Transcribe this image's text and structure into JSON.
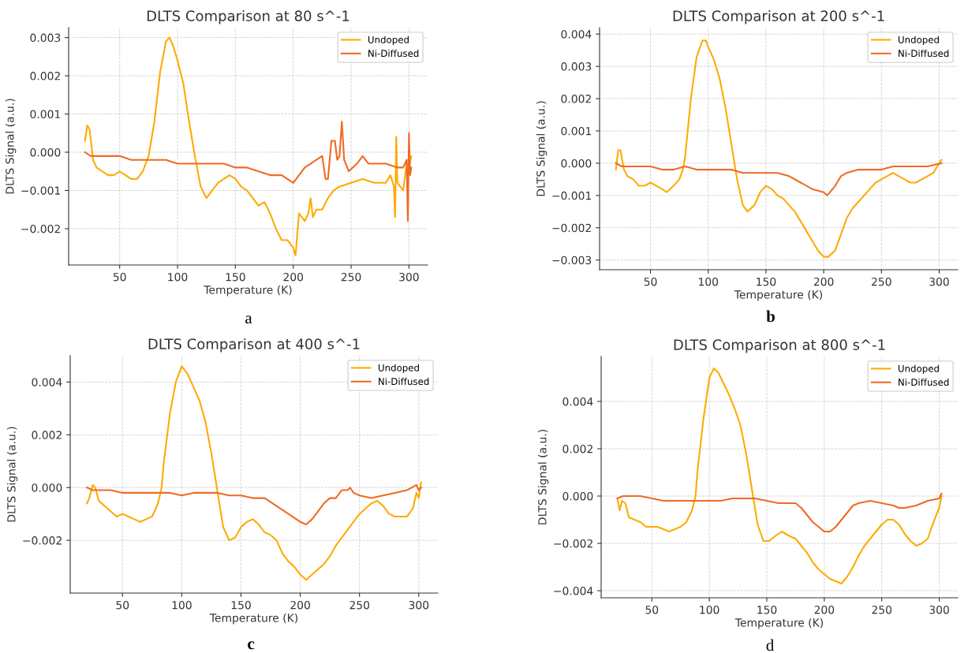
{
  "chart_data": [
    {
      "type": "line",
      "title": "DLTS Comparison at 80 s^-1",
      "xlabel": "Temperature (K)",
      "ylabel": "DLTS Signal (a.u.)",
      "annotations": [
        "a"
      ],
      "xlim": [
        5.9,
        316.1
      ],
      "ylim": [
        -0.00295,
        0.00326
      ],
      "xticks": [
        50,
        100,
        150,
        200,
        250,
        300
      ],
      "yticks": [
        {
          "value": -0.002,
          "label": "−0.002"
        },
        {
          "value": -0.001,
          "label": "−0.001"
        },
        {
          "value": 0,
          "label": "0.000"
        },
        {
          "value": 0.001,
          "label": "0.001"
        },
        {
          "value": 0.002,
          "label": "0.002"
        },
        {
          "value": 0.003,
          "label": "0.003"
        }
      ],
      "grid": true,
      "legend": "top right",
      "marker": "none",
      "line_style": "solid",
      "series": [
        {
          "name": "Undoped",
          "color": "#ffaa00",
          "x": [
            20,
            22,
            24,
            27,
            30,
            35,
            40,
            45,
            50,
            55,
            60,
            65,
            70,
            75,
            80,
            85,
            90,
            93,
            96,
            100,
            105,
            110,
            115,
            120,
            125,
            130,
            135,
            140,
            145,
            150,
            155,
            160,
            165,
            170,
            175,
            180,
            185,
            190,
            195,
            200,
            202,
            205,
            210,
            213,
            215,
            217,
            220,
            225,
            230,
            235,
            240,
            250,
            260,
            270,
            280,
            284,
            287,
            288,
            289,
            290,
            295,
            298,
            300,
            302
          ],
          "values": [
            0.0003,
            0.0007,
            0.0006,
            -0.0002,
            -0.0004,
            -0.0005,
            -0.0006,
            -0.0006,
            -0.0005,
            -0.0006,
            -0.0007,
            -0.0007,
            -0.0005,
            -0.0001,
            0.0008,
            0.0021,
            0.0029,
            0.003,
            0.0028,
            0.0024,
            0.0018,
            0.0008,
            -0.0001,
            -0.0009,
            -0.0012,
            -0.001,
            -0.0008,
            -0.0007,
            -0.0006,
            -0.0007,
            -0.0009,
            -0.001,
            -0.0012,
            -0.0014,
            -0.0013,
            -0.0016,
            -0.002,
            -0.0023,
            -0.0023,
            -0.0025,
            -0.0027,
            -0.0016,
            -0.0018,
            -0.0016,
            -0.0012,
            -0.0017,
            -0.0015,
            -0.0015,
            -0.0012,
            -0.001,
            -0.0009,
            -0.0008,
            -0.0007,
            -0.0008,
            -0.0008,
            -0.0006,
            -0.0009,
            -0.0017,
            0.0004,
            -0.0008,
            -0.001,
            -0.0003,
            -0.0004,
            -0.0001
          ]
        },
        {
          "name": "Ni-Diffused",
          "color": "#f06a24",
          "x": [
            20,
            25,
            30,
            40,
            50,
            60,
            70,
            80,
            90,
            100,
            110,
            120,
            130,
            140,
            150,
            160,
            170,
            180,
            190,
            200,
            205,
            210,
            215,
            220,
            225,
            228,
            230,
            233,
            236,
            238,
            240,
            242,
            244,
            248,
            255,
            260,
            265,
            270,
            280,
            290,
            295,
            298,
            299,
            300,
            301,
            302
          ],
          "values": [
            0.0,
            -0.0001,
            -0.0001,
            -0.0001,
            -0.0001,
            -0.0002,
            -0.0002,
            -0.0002,
            -0.0002,
            -0.0003,
            -0.0003,
            -0.0003,
            -0.0003,
            -0.0003,
            -0.0004,
            -0.0004,
            -0.0005,
            -0.0006,
            -0.0006,
            -0.0008,
            -0.0006,
            -0.0004,
            -0.0003,
            -0.0002,
            -0.0001,
            -0.0007,
            -0.0007,
            0.0003,
            0.0003,
            -0.0002,
            -0.0001,
            0.0008,
            -0.0002,
            -0.0005,
            -0.0003,
            -0.0001,
            -0.0003,
            -0.0003,
            -0.0003,
            -0.0004,
            -0.0004,
            -0.0002,
            -0.0018,
            0.0005,
            -0.0006,
            -0.0004
          ]
        }
      ]
    },
    {
      "type": "line",
      "title": "DLTS Comparison at 200 s^-1",
      "xlabel": "Temperature (K)",
      "ylabel": "DLTS Signal (a.u.)",
      "annotations": [
        "b"
      ],
      "xlim": [
        5.9,
        316.1
      ],
      "ylim": [
        -0.0033,
        0.0042
      ],
      "xticks": [
        50,
        100,
        150,
        200,
        250,
        300
      ],
      "yticks": [
        {
          "value": -0.003,
          "label": "−0.003"
        },
        {
          "value": -0.002,
          "label": "−0.002"
        },
        {
          "value": -0.001,
          "label": "−0.001"
        },
        {
          "value": 0,
          "label": "0.000"
        },
        {
          "value": 0.001,
          "label": "0.001"
        },
        {
          "value": 0.002,
          "label": "0.002"
        },
        {
          "value": 0.003,
          "label": "0.003"
        },
        {
          "value": 0.004,
          "label": "0.004"
        }
      ],
      "grid": true,
      "legend": "top right",
      "marker": "none",
      "line_style": "solid",
      "series": [
        {
          "name": "Undoped",
          "color": "#ffaa00",
          "x": [
            20,
            22,
            24,
            27,
            30,
            35,
            40,
            45,
            50,
            55,
            60,
            64,
            70,
            75,
            78,
            80,
            85,
            90,
            95,
            98,
            100,
            105,
            110,
            115,
            120,
            125,
            130,
            134,
            140,
            145,
            150,
            155,
            160,
            165,
            170,
            175,
            180,
            185,
            190,
            195,
            200,
            204,
            210,
            215,
            220,
            225,
            230,
            235,
            240,
            245,
            250,
            255,
            260,
            265,
            270,
            275,
            280,
            285,
            290,
            295,
            300,
            302
          ],
          "values": [
            -0.0002,
            0.0004,
            0.0004,
            -0.0002,
            -0.0004,
            -0.0005,
            -0.0007,
            -0.0007,
            -0.0006,
            -0.0007,
            -0.0008,
            -0.0009,
            -0.0007,
            -0.0005,
            -0.0002,
            0.0002,
            0.002,
            0.0033,
            0.0038,
            0.0038,
            0.0036,
            0.0032,
            0.0026,
            0.0017,
            0.0006,
            -0.0005,
            -0.0013,
            -0.0015,
            -0.0013,
            -0.0009,
            -0.0007,
            -0.0008,
            -0.001,
            -0.0011,
            -0.0013,
            -0.0015,
            -0.0018,
            -0.0021,
            -0.0024,
            -0.0027,
            -0.0029,
            -0.0029,
            -0.0027,
            -0.0022,
            -0.0017,
            -0.0014,
            -0.0012,
            -0.001,
            -0.0008,
            -0.0006,
            -0.0005,
            -0.0004,
            -0.0003,
            -0.0004,
            -0.0005,
            -0.0006,
            -0.0006,
            -0.0005,
            -0.0004,
            -0.0003,
            0.0,
            0.0001
          ]
        },
        {
          "name": "Ni-Diffused",
          "color": "#f06a24",
          "x": [
            20,
            25,
            30,
            40,
            50,
            60,
            70,
            80,
            90,
            100,
            110,
            120,
            130,
            140,
            150,
            160,
            170,
            180,
            190,
            200,
            203,
            210,
            215,
            220,
            230,
            240,
            250,
            260,
            270,
            280,
            290,
            302
          ],
          "values": [
            0.0,
            -0.0001,
            -0.0001,
            -0.0001,
            -0.0001,
            -0.0002,
            -0.0002,
            -0.0001,
            -0.0002,
            -0.0002,
            -0.0002,
            -0.0002,
            -0.0003,
            -0.0003,
            -0.0003,
            -0.0003,
            -0.0004,
            -0.0006,
            -0.0008,
            -0.0009,
            -0.001,
            -0.0007,
            -0.0004,
            -0.0003,
            -0.0002,
            -0.0002,
            -0.0002,
            -0.0001,
            -0.0001,
            -0.0001,
            -0.0001,
            0.0
          ]
        }
      ]
    },
    {
      "type": "line",
      "title": "DLTS Comparison at 400 s^-1",
      "xlabel": "Temperature (K)",
      "ylabel": "DLTS Signal (a.u.)",
      "annotations": [
        "c"
      ],
      "xlim": [
        5.9,
        316.1
      ],
      "ylim": [
        -0.004,
        0.005
      ],
      "xticks": [
        50,
        100,
        150,
        200,
        250,
        300
      ],
      "yticks": [
        {
          "value": -0.002,
          "label": "−0.002"
        },
        {
          "value": 0,
          "label": "0.000"
        },
        {
          "value": 0.002,
          "label": "0.002"
        },
        {
          "value": 0.004,
          "label": "0.004"
        }
      ],
      "grid": true,
      "legend": "top right",
      "marker": "none",
      "line_style": "solid",
      "series": [
        {
          "name": "Undoped",
          "color": "#ffaa00",
          "x": [
            20,
            22,
            25,
            27,
            30,
            35,
            40,
            45,
            50,
            55,
            60,
            65,
            70,
            75,
            80,
            83,
            85,
            90,
            95,
            100,
            105,
            110,
            115,
            120,
            125,
            130,
            135,
            140,
            145,
            150,
            155,
            160,
            165,
            170,
            175,
            180,
            185,
            190,
            195,
            200,
            205,
            210,
            215,
            220,
            225,
            230,
            235,
            240,
            245,
            250,
            255,
            260,
            265,
            270,
            275,
            280,
            285,
            290,
            295,
            298,
            300,
            302
          ],
          "values": [
            -0.0006,
            -0.0004,
            0.0001,
            0.0,
            -0.0005,
            -0.0007,
            -0.0009,
            -0.0011,
            -0.001,
            -0.0011,
            -0.0012,
            -0.0013,
            -0.0012,
            -0.0011,
            -0.0006,
            0.0,
            0.001,
            0.0028,
            0.004,
            0.0046,
            0.0043,
            0.0038,
            0.0033,
            0.0025,
            0.0013,
            -0.0001,
            -0.0015,
            -0.002,
            -0.0019,
            -0.0015,
            -0.0013,
            -0.0012,
            -0.0014,
            -0.0017,
            -0.0018,
            -0.002,
            -0.0025,
            -0.0028,
            -0.003,
            -0.0033,
            -0.0035,
            -0.0033,
            -0.0031,
            -0.0029,
            -0.0026,
            -0.0022,
            -0.0019,
            -0.0016,
            -0.0013,
            -0.001,
            -0.0008,
            -0.0006,
            -0.0005,
            -0.0007,
            -0.001,
            -0.0011,
            -0.0011,
            -0.0011,
            -0.0008,
            -0.0002,
            -0.0004,
            0.0002
          ]
        },
        {
          "name": "Ni-Diffused",
          "color": "#f06a24",
          "x": [
            20,
            25,
            30,
            40,
            50,
            60,
            70,
            80,
            90,
            100,
            110,
            120,
            130,
            140,
            150,
            160,
            170,
            180,
            190,
            200,
            205,
            210,
            215,
            220,
            225,
            230,
            235,
            240,
            242,
            245,
            250,
            260,
            270,
            280,
            290,
            298,
            300,
            302
          ],
          "values": [
            0.0,
            -0.0001,
            -0.0001,
            -0.0001,
            -0.0002,
            -0.0002,
            -0.0002,
            -0.0002,
            -0.0002,
            -0.0003,
            -0.0002,
            -0.0002,
            -0.0002,
            -0.0003,
            -0.0003,
            -0.0004,
            -0.0004,
            -0.0007,
            -0.001,
            -0.0013,
            -0.0014,
            -0.0012,
            -0.0009,
            -0.0006,
            -0.0004,
            -0.0004,
            -0.0001,
            -0.0001,
            0.0,
            -0.0002,
            -0.0003,
            -0.0004,
            -0.0003,
            -0.0002,
            -0.0001,
            0.0001,
            -0.0001,
            0.0
          ]
        }
      ]
    },
    {
      "type": "line",
      "title": "DLTS Comparison at 800 s^-1",
      "xlabel": "Temperature (K)",
      "ylabel": "DLTS Signal (a.u.)",
      "annotations": [
        "d"
      ],
      "xlim": [
        5.9,
        316.1
      ],
      "ylim": [
        -0.0043,
        0.0059
      ],
      "xticks": [
        50,
        100,
        150,
        200,
        250,
        300
      ],
      "yticks": [
        {
          "value": -0.004,
          "label": "−0.004"
        },
        {
          "value": -0.002,
          "label": "−0.002"
        },
        {
          "value": 0,
          "label": "0.000"
        },
        {
          "value": 0.002,
          "label": "0.002"
        },
        {
          "value": 0.004,
          "label": "0.004"
        }
      ],
      "grid": true,
      "legend": "top right",
      "marker": "none",
      "line_style": "solid",
      "series": [
        {
          "name": "Undoped",
          "color": "#ffaa00",
          "x": [
            20,
            22,
            24,
            27,
            30,
            35,
            40,
            45,
            50,
            55,
            60,
            65,
            70,
            75,
            80,
            85,
            88,
            90,
            95,
            100,
            104,
            108,
            112,
            117,
            122,
            127,
            132,
            137,
            142,
            147,
            152,
            157,
            163,
            170,
            175,
            180,
            185,
            190,
            195,
            200,
            205,
            210,
            215,
            220,
            225,
            230,
            235,
            240,
            245,
            250,
            255,
            260,
            265,
            270,
            275,
            280,
            285,
            290,
            295,
            300,
            302
          ],
          "values": [
            -0.0001,
            -0.0006,
            -0.0002,
            -0.0003,
            -0.0009,
            -0.001,
            -0.0011,
            -0.0013,
            -0.0013,
            -0.0013,
            -0.0014,
            -0.0015,
            -0.0014,
            -0.0013,
            -0.0011,
            -0.0006,
            0.0,
            0.0012,
            0.0033,
            0.005,
            0.0054,
            0.0052,
            0.0048,
            0.0043,
            0.0037,
            0.003,
            0.0018,
            0.0003,
            -0.0012,
            -0.0019,
            -0.0019,
            -0.0017,
            -0.0015,
            -0.0017,
            -0.0018,
            -0.0021,
            -0.0024,
            -0.0028,
            -0.0031,
            -0.0033,
            -0.0035,
            -0.0036,
            -0.0037,
            -0.0034,
            -0.003,
            -0.0025,
            -0.0021,
            -0.0018,
            -0.0015,
            -0.0012,
            -0.001,
            -0.001,
            -0.0012,
            -0.0016,
            -0.0019,
            -0.0021,
            -0.002,
            -0.0018,
            -0.0011,
            -0.0005,
            0.0
          ]
        },
        {
          "name": "Ni-Diffused",
          "color": "#f06a24",
          "x": [
            20,
            25,
            30,
            40,
            50,
            60,
            70,
            80,
            90,
            100,
            110,
            120,
            130,
            140,
            150,
            160,
            170,
            175,
            180,
            185,
            190,
            195,
            200,
            205,
            210,
            215,
            220,
            225,
            230,
            240,
            250,
            260,
            265,
            270,
            280,
            290,
            300,
            302
          ],
          "values": [
            -0.0001,
            0.0,
            0.0,
            0.0,
            -0.0001,
            -0.0002,
            -0.0002,
            -0.0002,
            -0.0002,
            -0.0002,
            -0.0002,
            -0.0001,
            -0.0001,
            -0.0001,
            -0.0002,
            -0.0003,
            -0.0003,
            -0.0003,
            -0.0005,
            -0.0008,
            -0.0011,
            -0.0013,
            -0.0015,
            -0.0015,
            -0.0013,
            -0.001,
            -0.0007,
            -0.0004,
            -0.0003,
            -0.0002,
            -0.0003,
            -0.0004,
            -0.0005,
            -0.0005,
            -0.0004,
            -0.0002,
            -0.0001,
            0.0001
          ]
        }
      ]
    }
  ]
}
